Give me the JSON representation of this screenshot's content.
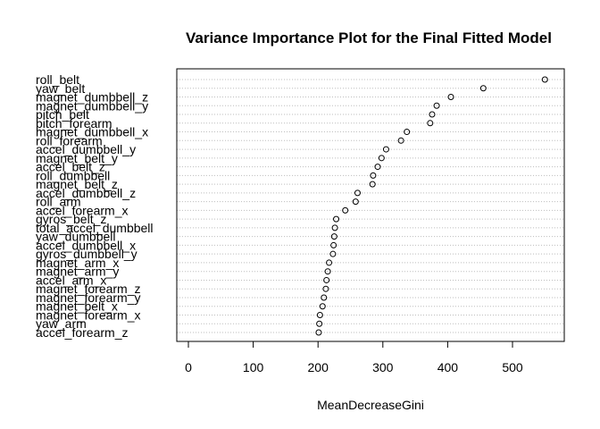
{
  "chart_data": {
    "type": "scatter",
    "title": "Variance Importance Plot for the Final Fitted Model",
    "xlabel": "MeanDecreaseGini",
    "ylabel": "",
    "xlim": [
      -10,
      570
    ],
    "xticks": [
      0,
      100,
      200,
      300,
      400,
      500
    ],
    "grid": "horizontal-dotted",
    "categories": [
      "roll_belt",
      "yaw_belt",
      "magnet_dumbbell_z",
      "magnet_dumbbell_y",
      "pitch_belt",
      "pitch_forearm",
      "magnet_dumbbell_x",
      "roll_forearm",
      "accel_dumbbell_y",
      "magnet_belt_y",
      "accel_belt_z",
      "roll_dumbbell",
      "magnet_belt_z",
      "accel_dumbbell_z",
      "roll_arm",
      "accel_forearm_x",
      "gyros_belt_z",
      "total_accel_dumbbell",
      "yaw_dumbbell",
      "accel_dumbbell_x",
      "gyros_dumbbell_y",
      "magnet_arm_x",
      "magnet_arm_y",
      "accel_arm_x",
      "magnet_forearm_z",
      "magnet_forearm_y",
      "magnet_belt_x",
      "magnet_forearm_x",
      "yaw_arm",
      "accel_forearm_z"
    ],
    "values": [
      550,
      455,
      405,
      383,
      376,
      373,
      337,
      328,
      305,
      298,
      292,
      285,
      284,
      261,
      258,
      242,
      228,
      226,
      225,
      224,
      223,
      217,
      215,
      213,
      212,
      209,
      207,
      203,
      202,
      201
    ]
  }
}
